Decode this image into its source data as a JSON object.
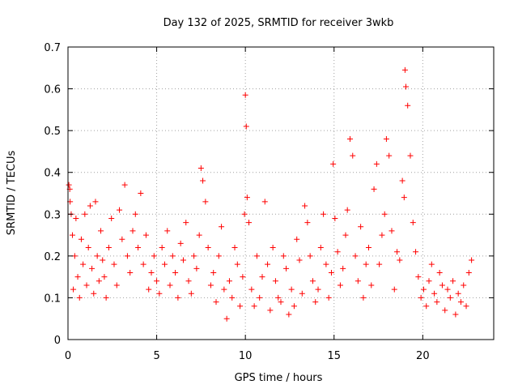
{
  "chart_data": {
    "type": "scatter",
    "title": "Day 132 of 2025, SRMTID for receiver 3wkb",
    "xlabel": "GPS time / hours",
    "ylabel": "SRMTID / TECUs",
    "xlim": [
      0,
      24
    ],
    "ylim": [
      0,
      0.7
    ],
    "xticks": [
      0,
      5,
      10,
      15,
      20
    ],
    "xtick_labels": [
      "0",
      "5",
      "10",
      "15",
      "20"
    ],
    "yticks": [
      0,
      0.1,
      0.2,
      0.3,
      0.4,
      0.5,
      0.6,
      0.7
    ],
    "ytick_labels": [
      "0",
      "0.1",
      "0.2",
      "0.3",
      "0.4",
      "0.5",
      "0.6",
      "0.7"
    ],
    "grid": true,
    "marker": "plus",
    "color": "#ff0000",
    "series": [
      {
        "name": "SRMTID",
        "x": [
          0.05,
          0.1,
          0.12,
          0.18,
          0.25,
          0.3,
          0.38,
          0.45,
          0.55,
          0.65,
          0.75,
          0.85,
          0.95,
          1.05,
          1.15,
          1.25,
          1.35,
          1.45,
          1.55,
          1.65,
          1.75,
          1.85,
          1.95,
          2.05,
          2.15,
          2.3,
          2.45,
          2.6,
          2.75,
          2.9,
          3.05,
          3.2,
          3.35,
          3.5,
          3.65,
          3.8,
          3.95,
          4.1,
          4.25,
          4.4,
          4.55,
          4.7,
          4.85,
          5.0,
          5.15,
          5.3,
          5.45,
          5.6,
          5.75,
          5.9,
          6.05,
          6.2,
          6.35,
          6.5,
          6.65,
          6.8,
          6.95,
          7.1,
          7.25,
          7.4,
          7.5,
          7.6,
          7.75,
          7.9,
          8.05,
          8.2,
          8.35,
          8.5,
          8.65,
          8.8,
          8.95,
          9.1,
          9.25,
          9.4,
          9.55,
          9.7,
          9.85,
          9.95,
          10.0,
          10.05,
          10.1,
          10.2,
          10.35,
          10.5,
          10.65,
          10.8,
          10.95,
          11.1,
          11.25,
          11.4,
          11.55,
          11.7,
          11.85,
          12.0,
          12.15,
          12.3,
          12.45,
          12.6,
          12.75,
          12.9,
          13.05,
          13.2,
          13.35,
          13.5,
          13.65,
          13.8,
          13.95,
          14.1,
          14.25,
          14.4,
          14.55,
          14.7,
          14.85,
          14.95,
          15.05,
          15.2,
          15.35,
          15.5,
          15.65,
          15.75,
          15.9,
          16.05,
          16.2,
          16.35,
          16.5,
          16.65,
          16.8,
          16.95,
          17.1,
          17.25,
          17.4,
          17.55,
          17.7,
          17.85,
          17.95,
          18.1,
          18.25,
          18.4,
          18.55,
          18.7,
          18.85,
          18.95,
          19.0,
          19.05,
          19.15,
          19.3,
          19.45,
          19.6,
          19.75,
          19.9,
          20.05,
          20.2,
          20.35,
          20.5,
          20.65,
          20.8,
          20.95,
          21.1,
          21.25,
          21.4,
          21.55,
          21.7,
          21.85,
          22.0,
          22.15,
          22.3,
          22.45,
          22.6,
          22.75
        ],
        "y": [
          0.37,
          0.36,
          0.33,
          0.3,
          0.25,
          0.12,
          0.2,
          0.29,
          0.15,
          0.1,
          0.24,
          0.18,
          0.3,
          0.13,
          0.22,
          0.32,
          0.17,
          0.11,
          0.33,
          0.2,
          0.14,
          0.26,
          0.19,
          0.15,
          0.1,
          0.22,
          0.29,
          0.18,
          0.13,
          0.31,
          0.24,
          0.37,
          0.2,
          0.16,
          0.26,
          0.3,
          0.22,
          0.35,
          0.18,
          0.25,
          0.12,
          0.16,
          0.2,
          0.14,
          0.11,
          0.22,
          0.18,
          0.26,
          0.13,
          0.2,
          0.16,
          0.1,
          0.23,
          0.19,
          0.28,
          0.14,
          0.11,
          0.2,
          0.17,
          0.25,
          0.41,
          0.38,
          0.33,
          0.22,
          0.13,
          0.16,
          0.09,
          0.2,
          0.27,
          0.12,
          0.05,
          0.14,
          0.1,
          0.22,
          0.18,
          0.08,
          0.15,
          0.3,
          0.585,
          0.51,
          0.34,
          0.28,
          0.12,
          0.08,
          0.2,
          0.1,
          0.15,
          0.33,
          0.18,
          0.07,
          0.22,
          0.14,
          0.1,
          0.09,
          0.2,
          0.17,
          0.06,
          0.12,
          0.08,
          0.24,
          0.19,
          0.11,
          0.32,
          0.28,
          0.2,
          0.14,
          0.09,
          0.12,
          0.22,
          0.3,
          0.18,
          0.1,
          0.16,
          0.42,
          0.29,
          0.21,
          0.13,
          0.17,
          0.25,
          0.31,
          0.48,
          0.44,
          0.2,
          0.14,
          0.27,
          0.1,
          0.18,
          0.22,
          0.13,
          0.36,
          0.42,
          0.18,
          0.25,
          0.3,
          0.48,
          0.44,
          0.26,
          0.12,
          0.21,
          0.19,
          0.38,
          0.34,
          0.645,
          0.605,
          0.56,
          0.44,
          0.28,
          0.21,
          0.15,
          0.1,
          0.12,
          0.08,
          0.14,
          0.18,
          0.11,
          0.09,
          0.16,
          0.13,
          0.07,
          0.12,
          0.1,
          0.14,
          0.06,
          0.11,
          0.09,
          0.13,
          0.08,
          0.16,
          0.19
        ]
      }
    ]
  }
}
